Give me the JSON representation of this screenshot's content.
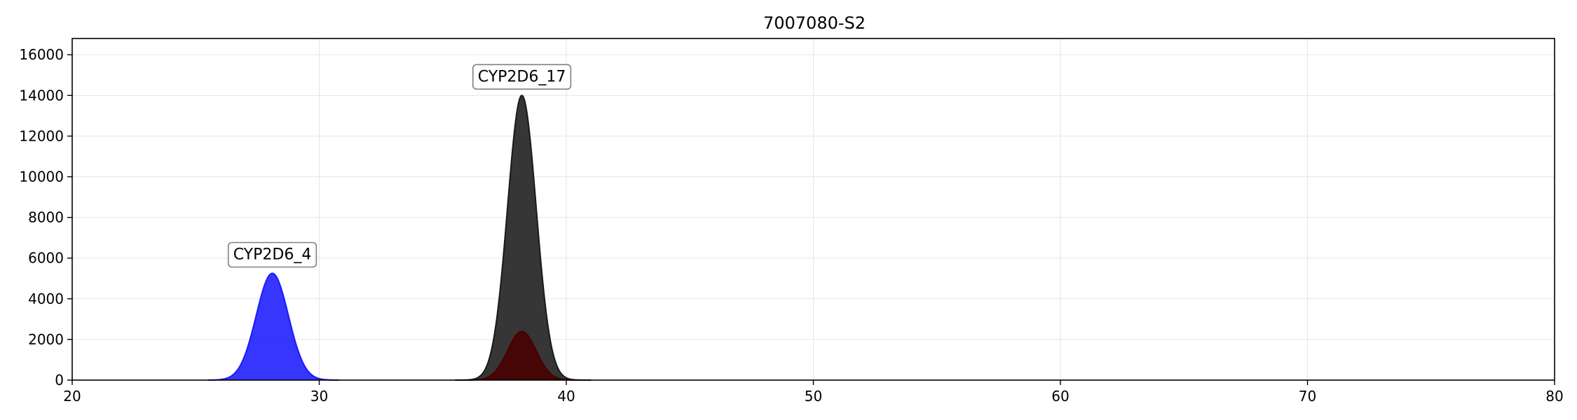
{
  "chart_data": {
    "type": "area",
    "title": "7007080-S2",
    "xlabel": "",
    "ylabel": "",
    "xlim": [
      20,
      80
    ],
    "ylim": [
      0,
      16800
    ],
    "x_ticks": [
      20,
      30,
      40,
      50,
      60,
      70,
      80
    ],
    "y_ticks": [
      0,
      2000,
      4000,
      6000,
      8000,
      10000,
      12000,
      14000,
      16000
    ],
    "grid": true,
    "series": [
      {
        "color": "#1a1aff",
        "peak_center": 28.1,
        "peak_height": 5250,
        "peak_sigma": 0.65,
        "x_extent": [
          25.5,
          30.8
        ],
        "annotation": "CYP2D6_4"
      },
      {
        "color": "#1a1a1a",
        "peak_center": 38.2,
        "peak_height": 14000,
        "peak_sigma": 0.58,
        "x_extent": [
          35.5,
          41.0
        ],
        "annotation": "CYP2D6_17"
      },
      {
        "color": "#4a0000",
        "peak_center": 38.2,
        "peak_height": 2400,
        "peak_sigma": 0.58,
        "x_extent": [
          35.5,
          41.0
        ],
        "annotation": ""
      }
    ]
  }
}
